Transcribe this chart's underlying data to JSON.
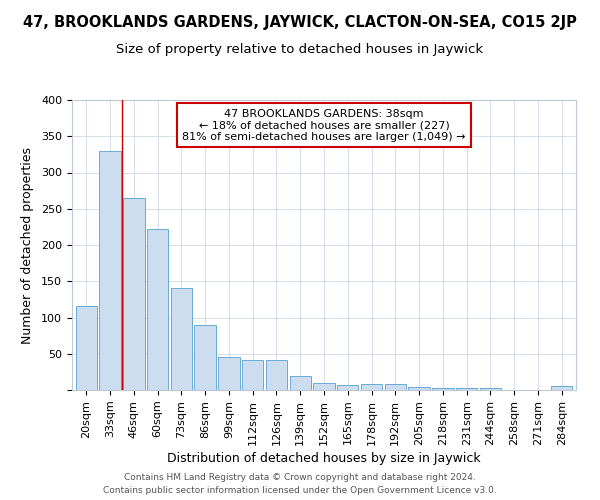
{
  "title": "47, BROOKLANDS GARDENS, JAYWICK, CLACTON-ON-SEA, CO15 2JP",
  "subtitle": "Size of property relative to detached houses in Jaywick",
  "xlabel": "Distribution of detached houses by size in Jaywick",
  "ylabel": "Number of detached properties",
  "categories": [
    "20sqm",
    "33sqm",
    "46sqm",
    "60sqm",
    "73sqm",
    "86sqm",
    "99sqm",
    "112sqm",
    "126sqm",
    "139sqm",
    "152sqm",
    "165sqm",
    "178sqm",
    "192sqm",
    "205sqm",
    "218sqm",
    "231sqm",
    "244sqm",
    "258sqm",
    "271sqm",
    "284sqm"
  ],
  "values": [
    116,
    330,
    265,
    222,
    141,
    90,
    45,
    41,
    41,
    20,
    10,
    7,
    8,
    8,
    4,
    3,
    3,
    3,
    0,
    0,
    5
  ],
  "bar_color": "#ccddf0",
  "bar_edge_color": "#6aaad4",
  "red_line_x": 1.5,
  "annotation_text": "47 BROOKLANDS GARDENS: 38sqm\n← 18% of detached houses are smaller (227)\n81% of semi-detached houses are larger (1,049) →",
  "annotation_box_color": "#ffffff",
  "annotation_box_edge": "#cc0000",
  "footer1": "Contains HM Land Registry data © Crown copyright and database right 2024.",
  "footer2": "Contains public sector information licensed under the Open Government Licence v3.0.",
  "bg_color": "#ffffff",
  "plot_bg_color": "#ffffff",
  "ylim": [
    0,
    400
  ],
  "yticks": [
    0,
    50,
    100,
    150,
    200,
    250,
    300,
    350,
    400
  ],
  "title_fontsize": 10.5,
  "subtitle_fontsize": 9.5,
  "axis_label_fontsize": 9,
  "tick_fontsize": 8
}
